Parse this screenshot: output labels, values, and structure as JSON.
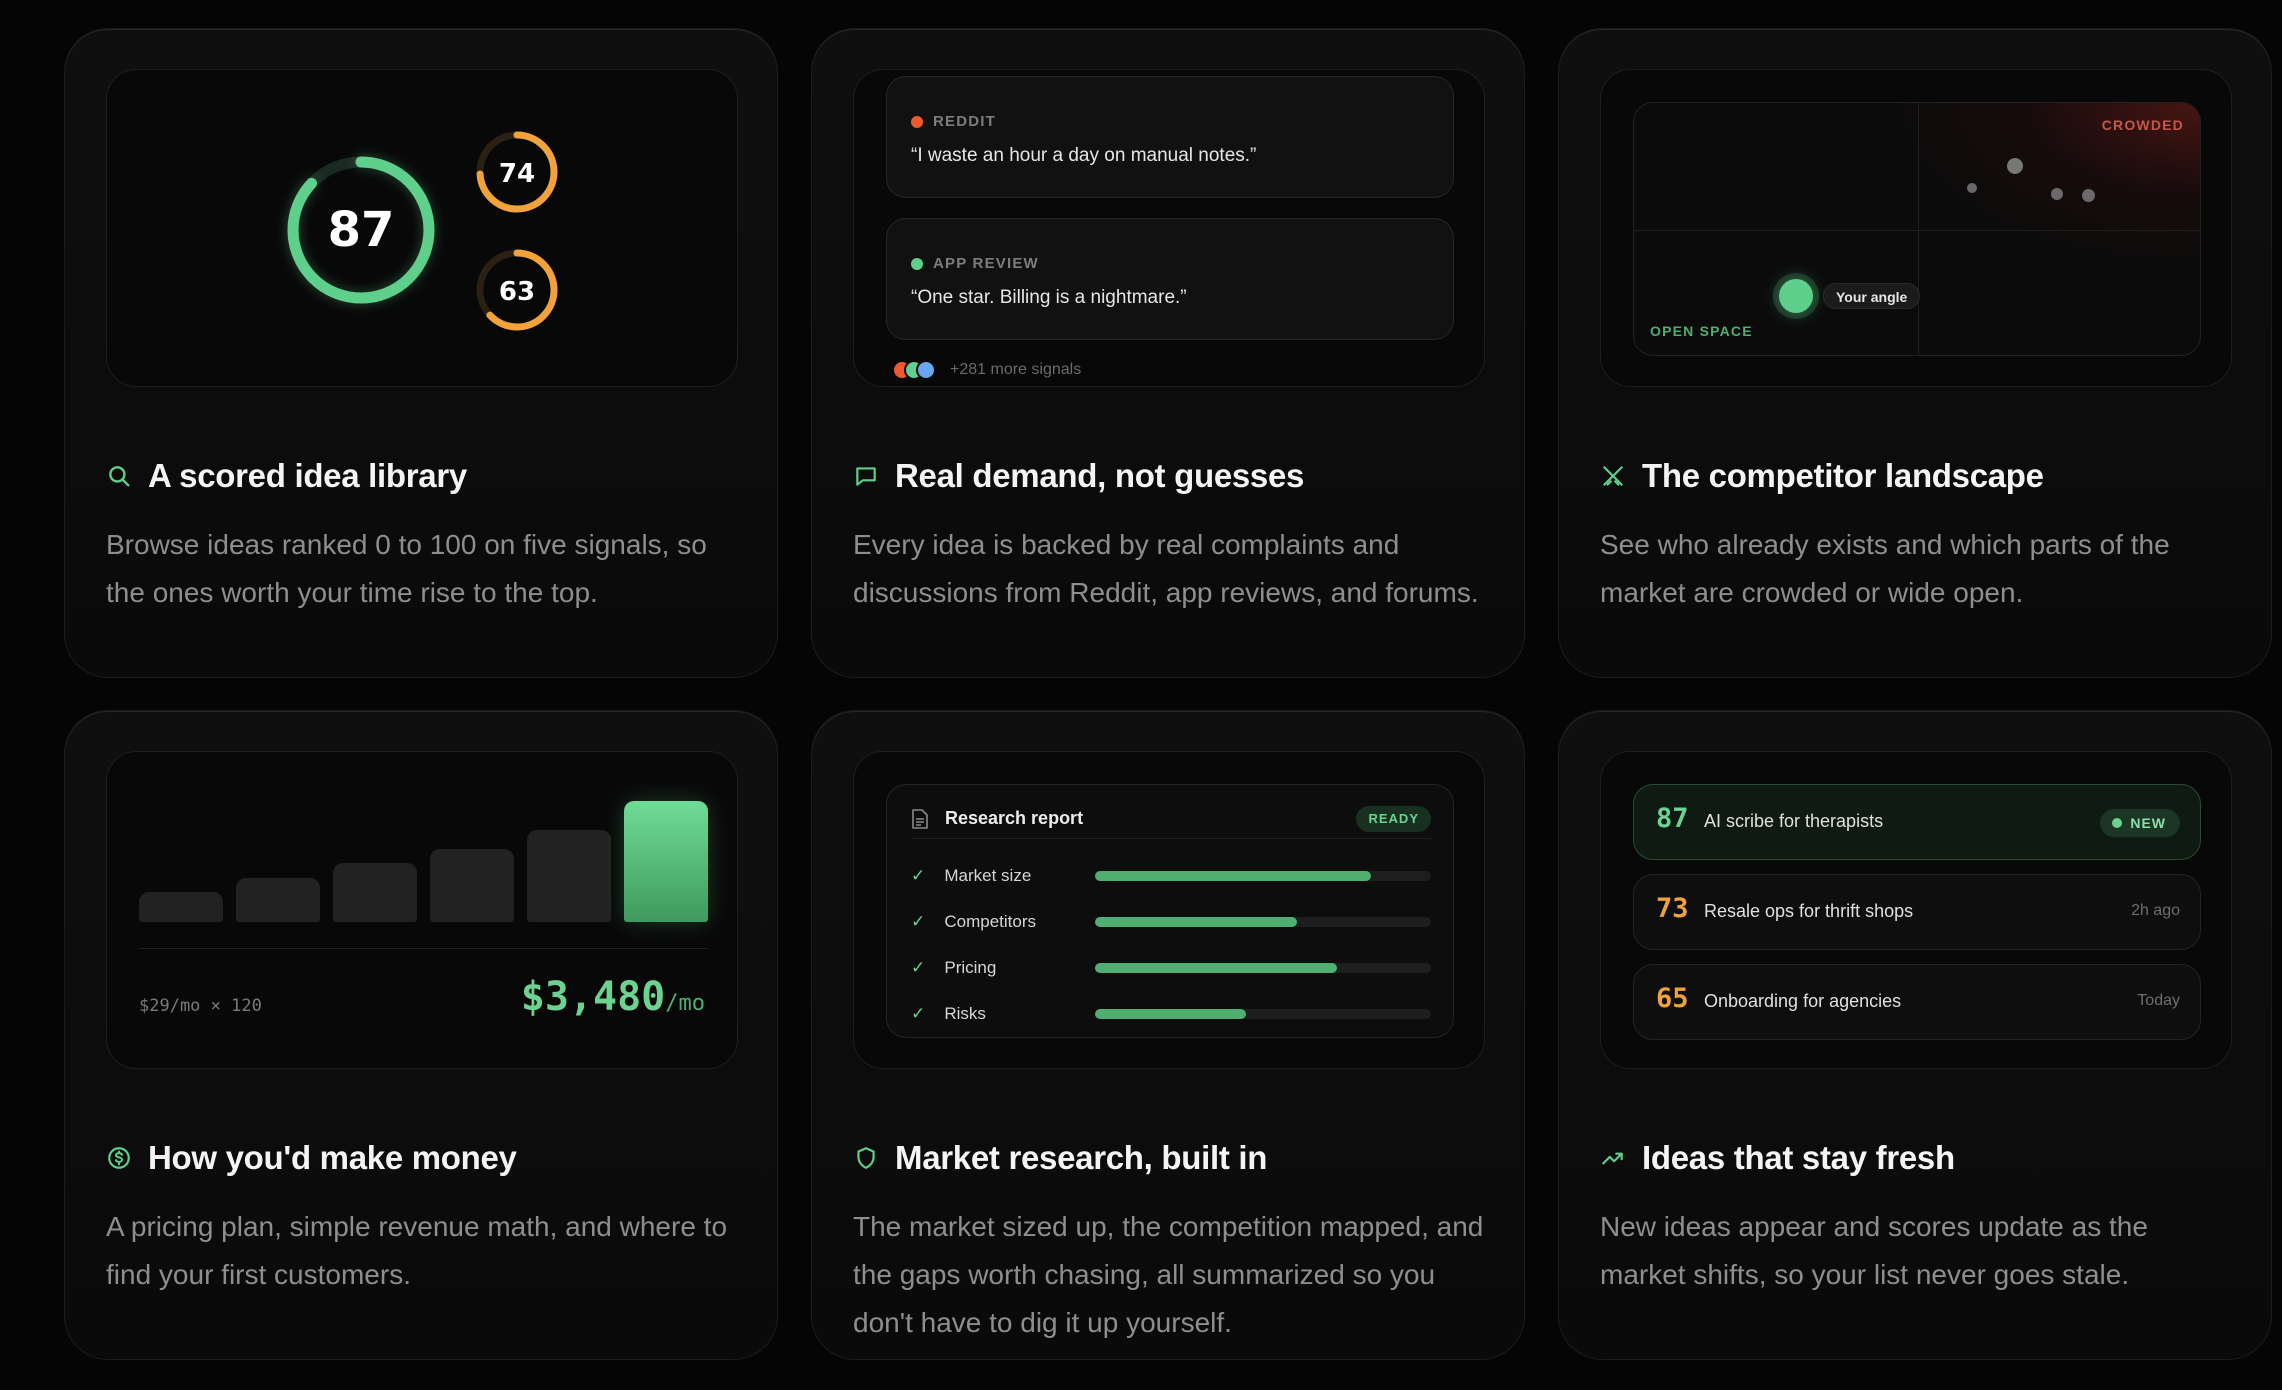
{
  "cards": [
    {
      "title": "A scored idea library",
      "icon": "search-icon",
      "description": "Browse ideas ranked 0 to 100 on five signals, so the ones worth your time rise to the top.",
      "scores": [
        {
          "value": "87",
          "fraction": 0.87,
          "color": "#5fd08c"
        },
        {
          "value": "74",
          "fraction": 0.74,
          "color": "#f2a23a"
        },
        {
          "value": "63",
          "fraction": 0.63,
          "color": "#f2a23a"
        }
      ]
    },
    {
      "title": "Real demand, not guesses",
      "icon": "chat-bubble-icon",
      "description": "Every idea is backed by real complaints and discussions from Reddit, app reviews, and forums.",
      "signals": [
        {
          "source": "REDDIT",
          "quote": "“I waste an hour a day on manual notes.”",
          "color": "#f0582e"
        },
        {
          "source": "APP REVIEW",
          "quote": "“One star. Billing is a nightmare.”",
          "color": "#5fd08c"
        }
      ],
      "more_signals": "+281 more signals"
    },
    {
      "title": "The competitor landscape",
      "icon": "crossed-swords-icon",
      "description": "See who already exists and which parts of the market are crowded or wide open.",
      "crowded_label": "CROWDED",
      "open_label": "OPEN SPACE",
      "angle_label": "Your angle"
    },
    {
      "title": "How you'd make money",
      "icon": "dollar-circle-icon",
      "description": "A pricing plan, simple revenue math, and where to find your first customers.",
      "formula": "$29/mo × 120",
      "revenue": "$3,480",
      "revenue_unit": "/mo",
      "bars": [
        0.23,
        0.34,
        0.45,
        0.56,
        0.71,
        0.93
      ]
    },
    {
      "title": "Market research, built in",
      "icon": "shield-icon",
      "description": "The market sized up, the competition mapped, and the gaps worth chasing, all summarized so you don't have to dig it up yourself.",
      "report_title": "Research report",
      "report_status": "READY",
      "report_items": [
        {
          "label": "Market size",
          "progress": 0.82
        },
        {
          "label": "Competitors",
          "progress": 0.6
        },
        {
          "label": "Pricing",
          "progress": 0.72
        },
        {
          "label": "Risks",
          "progress": 0.45
        }
      ]
    },
    {
      "title": "Ideas that stay fresh",
      "icon": "trending-up-icon",
      "description": "New ideas appear and scores update as the market shifts, so your list never goes stale.",
      "ideas": [
        {
          "score": "87",
          "title": "AI scribe for therapists",
          "meta": "NEW",
          "color": "#5fd08c"
        },
        {
          "score": "73",
          "title": "Resale ops for thrift shops",
          "meta": "2h ago",
          "color": "#f2a23a"
        },
        {
          "score": "65",
          "title": "Onboarding for agencies",
          "meta": "Today",
          "color": "#f2a23a"
        }
      ]
    }
  ]
}
